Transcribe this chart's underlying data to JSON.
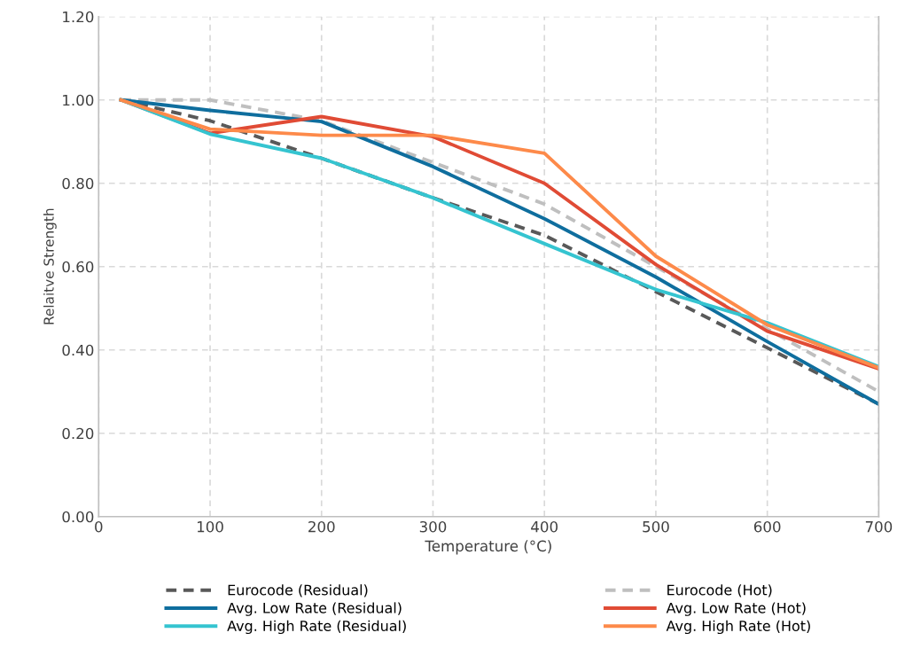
{
  "chart_data": {
    "type": "line",
    "xlabel": "Temperature (°C)",
    "ylabel": "Relaitve Strength",
    "x": [
      20,
      100,
      200,
      300,
      400,
      500,
      600,
      700
    ],
    "xlim": [
      0,
      700
    ],
    "xticks": [
      0,
      100,
      200,
      300,
      400,
      500,
      600,
      700
    ],
    "ylim": [
      0,
      1.2
    ],
    "yticks": [
      {
        "value": 0,
        "label": "0.00"
      },
      {
        "value": 0.2,
        "label": "0.20"
      },
      {
        "value": 0.4,
        "label": "0.40"
      },
      {
        "value": 0.6,
        "label": "0.60"
      },
      {
        "value": 0.8,
        "label": "0.80"
      },
      {
        "value": 1.0,
        "label": "1.00"
      },
      {
        "value": 1.2,
        "label": "1.20"
      }
    ],
    "grid": true,
    "legend": "bottom",
    "marker": "none",
    "series": [
      {
        "name": "Eurocode (Residual)",
        "color": "#595959",
        "line_style": "dashed",
        "values": [
          1.0,
          0.95,
          0.86,
          0.765,
          0.675,
          0.54,
          0.405,
          0.27
        ]
      },
      {
        "name": "Eurocode (Hot)",
        "color": "#bfbfbf",
        "line_style": "dashed",
        "values": [
          1.0,
          1.0,
          0.95,
          0.85,
          0.75,
          0.6,
          0.45,
          0.3
        ]
      },
      {
        "name": "Avg. Low Rate (Residual)",
        "color": "#0f6e9e",
        "line_style": "solid",
        "values": [
          1.0,
          0.975,
          0.948,
          0.84,
          0.715,
          0.575,
          0.42,
          0.27
        ]
      },
      {
        "name": "Avg. Low Rate (Hot)",
        "color": "#e04b35",
        "line_style": "solid",
        "values": [
          1.0,
          0.92,
          0.96,
          0.912,
          0.8,
          0.605,
          0.445,
          0.355
        ]
      },
      {
        "name": "Avg. High Rate (Residual)",
        "color": "#35c4d0",
        "line_style": "solid",
        "values": [
          1.0,
          0.918,
          0.86,
          0.765,
          0.655,
          0.545,
          0.465,
          0.36
        ]
      },
      {
        "name": "Avg. High Rate (Hot)",
        "color": "#fd8a4a",
        "line_style": "solid",
        "values": [
          1.0,
          0.93,
          0.915,
          0.915,
          0.872,
          0.625,
          0.46,
          0.357
        ]
      }
    ]
  }
}
